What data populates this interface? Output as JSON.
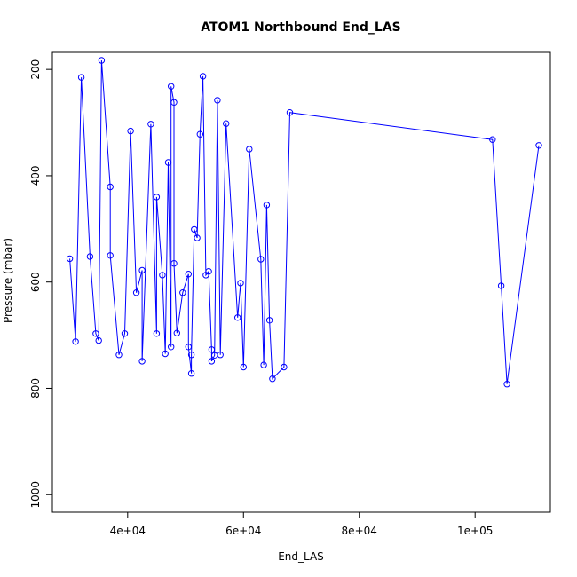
{
  "chart_data": {
    "type": "line",
    "title": "ATOM1 Northbound End_LAS",
    "xlabel": "End_LAS",
    "ylabel": "Pressure (mbar)",
    "xlim": [
      27000,
      113000
    ],
    "ylim": [
      1033,
      168
    ],
    "y_inverted": true,
    "grid": false,
    "legend": "none",
    "x_ticks": [
      40000,
      60000,
      80000,
      100000
    ],
    "x_tick_labels": [
      "4e+04",
      "6e+04",
      "8e+04",
      "1e+05"
    ],
    "y_ticks": [
      200,
      400,
      600,
      800,
      1000
    ],
    "y_tick_labels": [
      "200",
      "400",
      "600",
      "800",
      "1000"
    ],
    "series": [
      {
        "color": "#0000ff",
        "points": [
          [
            30000,
            556
          ],
          [
            31000,
            712
          ],
          [
            32000,
            215
          ],
          [
            33500,
            552
          ],
          [
            34500,
            697
          ],
          [
            35000,
            710
          ],
          [
            35500,
            183
          ],
          [
            37000,
            421
          ],
          [
            37000,
            550
          ],
          [
            38500,
            737
          ],
          [
            39500,
            697
          ],
          [
            40500,
            316
          ],
          [
            41500,
            620
          ],
          [
            42500,
            578
          ],
          [
            42500,
            749
          ],
          [
            44000,
            303
          ],
          [
            45000,
            697
          ],
          [
            45000,
            440
          ],
          [
            46000,
            587
          ],
          [
            46500,
            735
          ],
          [
            47000,
            375
          ],
          [
            47500,
            722
          ],
          [
            47500,
            232
          ],
          [
            48000,
            262
          ],
          [
            48000,
            565
          ],
          [
            48500,
            696
          ],
          [
            49500,
            620
          ],
          [
            50500,
            585
          ],
          [
            50500,
            722
          ],
          [
            51000,
            772
          ],
          [
            51000,
            737
          ],
          [
            51500,
            501
          ],
          [
            52000,
            517
          ],
          [
            52500,
            322
          ],
          [
            53000,
            213
          ],
          [
            53500,
            587
          ],
          [
            54000,
            580
          ],
          [
            54500,
            727
          ],
          [
            54500,
            749
          ],
          [
            55000,
            738
          ],
          [
            55500,
            258
          ],
          [
            56000,
            737
          ],
          [
            57000,
            302
          ],
          [
            59000,
            667
          ],
          [
            59500,
            602
          ],
          [
            60000,
            760
          ],
          [
            61000,
            350
          ],
          [
            63000,
            557
          ],
          [
            63500,
            756
          ],
          [
            64000,
            455
          ],
          [
            64500,
            672
          ],
          [
            65000,
            782
          ],
          [
            67000,
            760
          ],
          [
            68000,
            281
          ],
          [
            103000,
            332
          ],
          [
            104500,
            607
          ],
          [
            105500,
            792
          ],
          [
            111000,
            343
          ]
        ]
      }
    ]
  }
}
